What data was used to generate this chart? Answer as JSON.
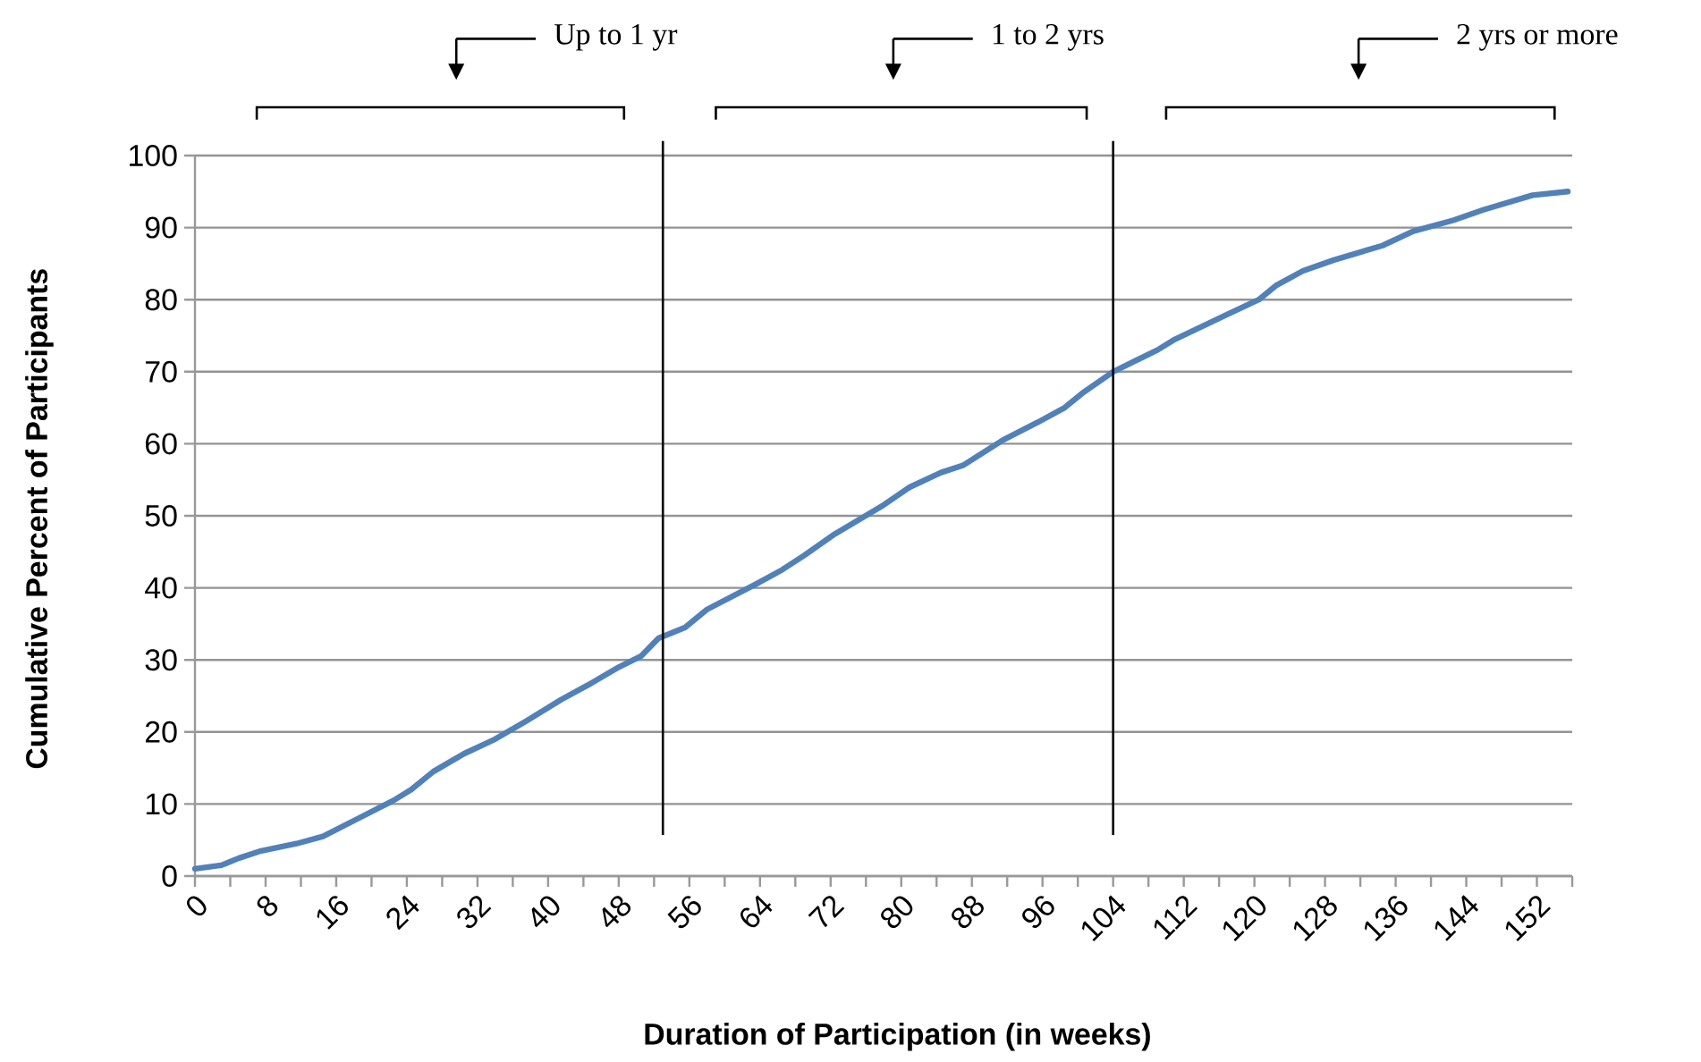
{
  "chart_data": {
    "type": "line",
    "xlabel": "Duration of Participation (in weeks)",
    "ylabel": "Cumulative Percent of Participants",
    "x": [
      0,
      3,
      5,
      7.5,
      11.5,
      14.5,
      18.5,
      22.5,
      24.5,
      27,
      30.5,
      34,
      37.5,
      41.5,
      44.5,
      48,
      50.5,
      52.5,
      55.5,
      58,
      63.5,
      66.5,
      69,
      72.5,
      78,
      81,
      84.5,
      87,
      91.5,
      95.5,
      98.5,
      100.5,
      104,
      109,
      111,
      117,
      120.5,
      122.5,
      125.5,
      129,
      134.5,
      138,
      142.5,
      146,
      151.5,
      155.5
    ],
    "series": [
      {
        "color": "#4f81bd",
        "values": [
          1,
          1.5,
          2.5,
          3.5,
          4.5,
          5.5,
          8,
          10.5,
          12,
          14.5,
          17,
          19,
          21.5,
          24.5,
          26.5,
          29,
          30.5,
          33,
          34.5,
          37,
          40.5,
          42.5,
          44.5,
          47.5,
          51.5,
          54,
          56,
          57,
          60.5,
          63,
          65,
          67,
          70,
          73,
          74.5,
          78,
          80,
          82,
          84,
          85.5,
          87.5,
          89.5,
          91,
          92.5,
          94.5,
          95
        ]
      }
    ],
    "xlim": [
      0,
      156
    ],
    "xticks": [
      0,
      {
        "value": 4,
        "label": null
      },
      8,
      {
        "value": 12,
        "label": null
      },
      16,
      {
        "value": 20,
        "label": null
      },
      24,
      {
        "value": 28,
        "label": null
      },
      32,
      {
        "value": 36,
        "label": null
      },
      40,
      {
        "value": 44,
        "label": null
      },
      48,
      {
        "value": 52,
        "label": null
      },
      56,
      {
        "value": 60,
        "label": null
      },
      64,
      {
        "value": 68,
        "label": null
      },
      72,
      {
        "value": 76,
        "label": null
      },
      80,
      {
        "value": 84,
        "label": null
      },
      88,
      {
        "value": 92,
        "label": null
      },
      96,
      {
        "value": 100,
        "label": null
      },
      104,
      {
        "value": 108,
        "label": null
      },
      112,
      {
        "value": 116,
        "label": null
      },
      120,
      {
        "value": 124,
        "label": null
      },
      128,
      {
        "value": 132,
        "label": null
      },
      136,
      {
        "value": 140,
        "label": null
      },
      144,
      {
        "value": 148,
        "label": null
      },
      152,
      {
        "value": 156,
        "label": null
      }
    ],
    "ylim": [
      0,
      100
    ],
    "yticks": [
      0,
      10,
      20,
      30,
      40,
      50,
      60,
      70,
      80,
      90,
      100
    ],
    "grid": "y",
    "marker": "none",
    "line_style": "solid",
    "ref_lines": [
      {
        "axis": "x",
        "value": 53,
        "color": "#000000"
      },
      {
        "axis": "x",
        "value": 104,
        "color": "#000000"
      }
    ],
    "annotations": [
      "Up to 1 yr",
      "1 to 2 yrs",
      "2 yrs or more"
    ]
  }
}
